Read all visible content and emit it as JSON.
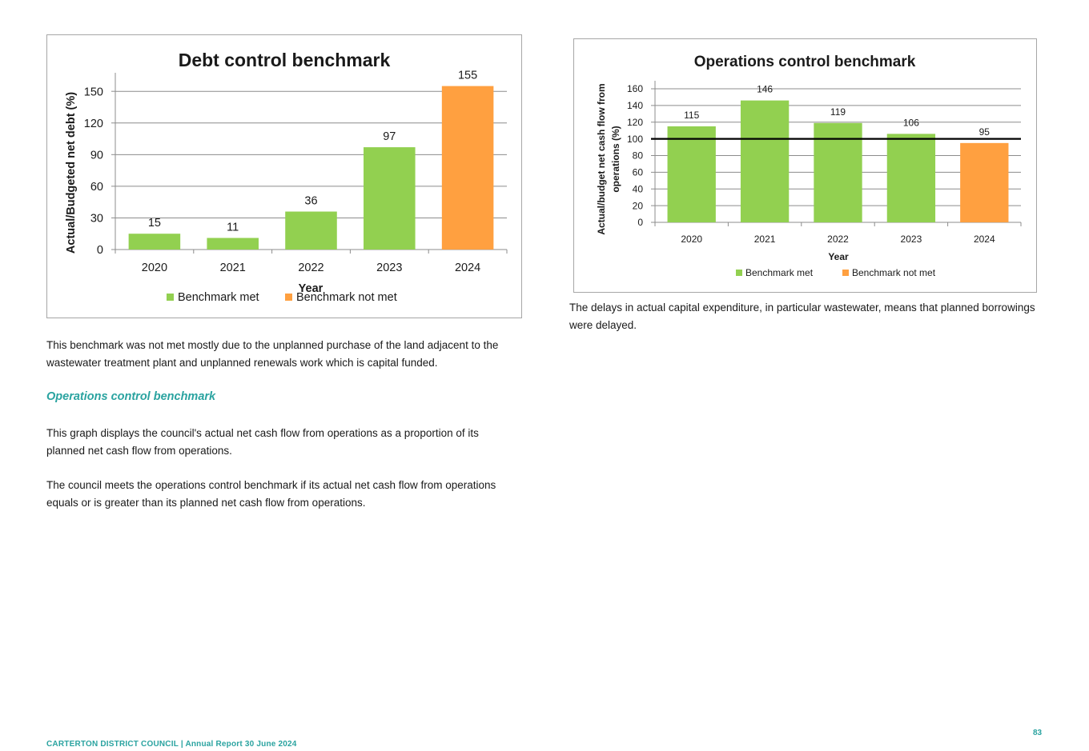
{
  "colors": {
    "met": "#92d050",
    "not_met": "#ffa040",
    "accent": "#2aa3a0"
  },
  "chart_data": [
    {
      "type": "bar",
      "title": "Debt control benchmark",
      "xlabel": "Year",
      "ylabel": "Actual/Budgeted net debt (%)",
      "categories": [
        "2020",
        "2021",
        "2022",
        "2023",
        "2024"
      ],
      "values": [
        15,
        11,
        36,
        97,
        155
      ],
      "status": [
        "met",
        "met",
        "met",
        "met",
        "not_met"
      ],
      "yticks": [
        0,
        30,
        60,
        90,
        120,
        150
      ],
      "ylim": [
        0,
        160
      ],
      "grid": true,
      "legend": [
        "Benchmark met",
        "Benchmark not met"
      ],
      "legend_position": "bottom"
    },
    {
      "type": "bar",
      "title": "Operations control benchmark",
      "xlabel": "Year",
      "ylabel": "Actual/budget net cash flow from operations (%)",
      "ylabel_lines": [
        "Actual/budget net cash flow from",
        "operations (%)"
      ],
      "categories": [
        "2020",
        "2021",
        "2022",
        "2023",
        "2024"
      ],
      "values": [
        115,
        146,
        119,
        106,
        95
      ],
      "status": [
        "met",
        "met",
        "met",
        "met",
        "not_met"
      ],
      "yticks": [
        0,
        20,
        40,
        60,
        80,
        100,
        120,
        140,
        160
      ],
      "ylim": [
        0,
        160
      ],
      "benchmark_line": 100,
      "grid": true,
      "legend": [
        "Benchmark met",
        "Benchmark not met"
      ],
      "legend_position": "bottom"
    }
  ],
  "text": {
    "debt_note": "This benchmark was not met mostly due to the unplanned purchase of the land adjacent to the wastewater treatment plant and unplanned renewals work which is capital funded.",
    "ops_heading": "Operations control benchmark",
    "ops_para1": "This graph displays the council's actual net cash flow from operations as a proportion of its planned net cash flow from operations.",
    "ops_para2": "The council meets the operations control benchmark if its actual net cash flow from operations equals or is greater than its planned net cash flow from operations.",
    "ops_note": "The delays in actual capital expenditure, in particular wastewater, means that planned borrowings were delayed."
  },
  "footer": {
    "org": "CARTERTON DISTRICT COUNCIL",
    "report": "Annual Report 30 June 2024",
    "page": "83"
  }
}
